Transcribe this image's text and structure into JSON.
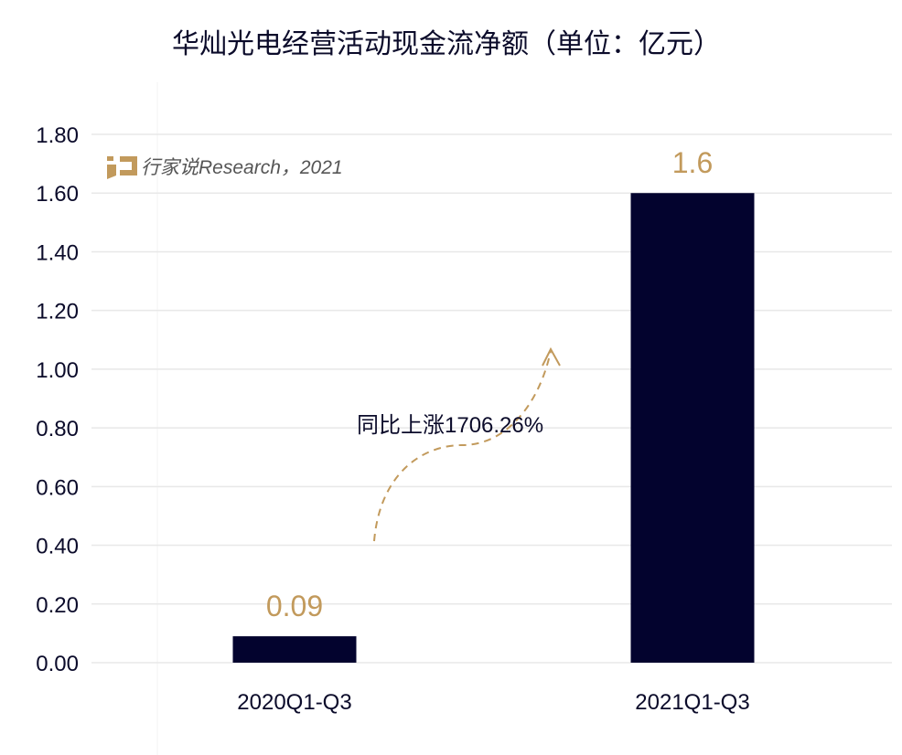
{
  "chart_data": {
    "type": "bar",
    "title": "华灿光电经营活动现金流净额（单位：亿元）",
    "categories": [
      "2020Q1-Q3",
      "2021Q1-Q3"
    ],
    "values": [
      0.09,
      1.6
    ],
    "data_labels": [
      "0.09",
      "1.6"
    ],
    "ylim": [
      0,
      1.8
    ],
    "yticks": [
      "0.00",
      "0.20",
      "0.40",
      "0.60",
      "0.80",
      "1.00",
      "1.20",
      "1.40",
      "1.60",
      "1.80"
    ],
    "grid": true,
    "annotation": "同比上涨1706.26%",
    "watermark": "行家说Research，2021",
    "colors": {
      "bar": "#03032e",
      "label": "#c29a5c",
      "arrow": "#c29a5c",
      "grid": "#e8e8e8"
    }
  }
}
